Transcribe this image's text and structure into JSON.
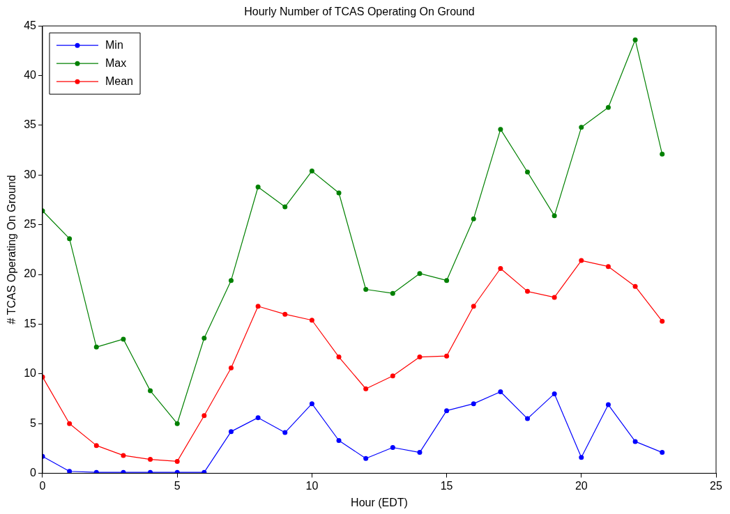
{
  "chart_data": {
    "type": "line",
    "title": "Hourly Number of TCAS Operating On Ground",
    "xlabel": "Hour (EDT)",
    "ylabel": "# TCAS Operating On Ground",
    "x": [
      0,
      1,
      2,
      3,
      4,
      5,
      6,
      7,
      8,
      9,
      10,
      11,
      12,
      13,
      14,
      15,
      16,
      17,
      18,
      19,
      20,
      21,
      22,
      23
    ],
    "series": [
      {
        "name": "Min",
        "color": "#0000ff",
        "values": [
          1.7,
          0.2,
          0.1,
          0.1,
          0.1,
          0.1,
          0.1,
          4.2,
          5.6,
          4.1,
          7.0,
          3.3,
          1.5,
          2.6,
          2.1,
          6.3,
          7.0,
          8.2,
          5.5,
          8.0,
          1.6,
          6.9,
          3.2,
          2.1
        ]
      },
      {
        "name": "Max",
        "color": "#008000",
        "values": [
          26.4,
          23.6,
          12.7,
          13.5,
          8.3,
          5.0,
          13.6,
          19.4,
          28.8,
          26.8,
          30.4,
          28.2,
          18.5,
          18.1,
          20.1,
          19.4,
          25.6,
          34.6,
          30.3,
          25.9,
          34.8,
          36.8,
          43.6,
          32.1
        ]
      },
      {
        "name": "Mean",
        "color": "#ff0000",
        "values": [
          9.7,
          5.0,
          2.8,
          1.8,
          1.4,
          1.2,
          5.8,
          10.6,
          16.8,
          16.0,
          15.4,
          11.7,
          8.5,
          9.8,
          11.7,
          11.8,
          16.8,
          20.6,
          18.3,
          17.7,
          21.4,
          20.8,
          18.8,
          15.3
        ]
      }
    ],
    "xlim": [
      0,
      25
    ],
    "xticks": [
      0,
      5,
      10,
      15,
      20,
      25
    ],
    "ylim": [
      0,
      45
    ],
    "yticks": [
      0,
      5,
      10,
      15,
      20,
      25,
      30,
      35,
      40,
      45
    ],
    "legend": "top left",
    "marker": "circle",
    "line_style": "solid"
  }
}
